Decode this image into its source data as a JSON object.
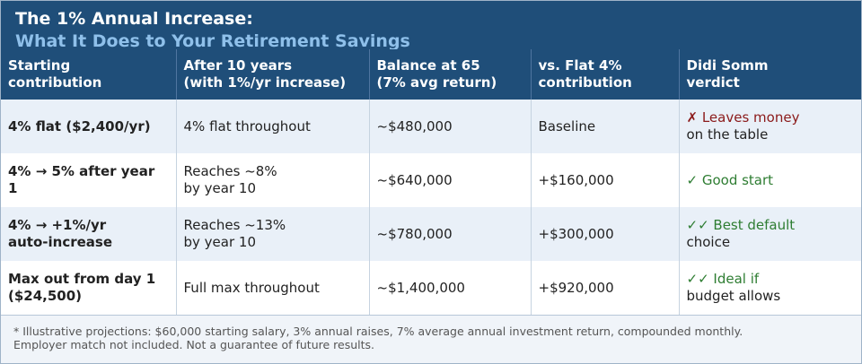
{
  "title": {
    "main": "The 1% Annual Increase:",
    "sub": "What It Does to Your Retirement Savings"
  },
  "table": {
    "headers": [
      {
        "line1": "Starting",
        "line2": "contribution"
      },
      {
        "line1": "After 10 years",
        "line2": "(with 1%/yr increase)"
      },
      {
        "line1": "Balance at 65",
        "line2": "(7% avg return)"
      },
      {
        "line1": "vs. Flat 4%",
        "line2": "contribution"
      },
      {
        "line1": "Didi Somm",
        "line2": "verdict"
      }
    ],
    "rows": [
      {
        "starting": {
          "line1": "4% flat ($2,400/yr)",
          "line2": ""
        },
        "after10": {
          "line1": "4% flat throughout",
          "line2": ""
        },
        "balance": "~$480,000",
        "vs_flat": "Baseline",
        "verdict": {
          "mark": "✗ Leaves money",
          "rest": "on the table",
          "tone": "bad"
        }
      },
      {
        "starting": {
          "line1": "4% → 5% after year",
          "line2": "1"
        },
        "after10": {
          "line1": "Reaches ~8%",
          "line2": "by year 10"
        },
        "balance": "~$640,000",
        "vs_flat": "+$160,000",
        "verdict": {
          "mark": "✓ Good start",
          "rest": "",
          "tone": "good"
        }
      },
      {
        "starting": {
          "line1": "4% → +1%/yr",
          "line2": "auto-increase"
        },
        "after10": {
          "line1": "Reaches ~13%",
          "line2": "by year 10"
        },
        "balance": "~$780,000",
        "vs_flat": "+$300,000",
        "verdict": {
          "mark": "✓✓ Best default",
          "rest": "choice",
          "tone": "good"
        }
      },
      {
        "starting": {
          "line1": "Max out from day 1",
          "line2": "($24,500)"
        },
        "after10": {
          "line1": "Full max throughout",
          "line2": ""
        },
        "balance": "~$1,400,000",
        "vs_flat": "+$920,000",
        "verdict": {
          "mark": "✓✓ Ideal if",
          "rest": "budget allows",
          "tone": "good"
        }
      }
    ]
  },
  "footnote": {
    "line1": "* Illustrative projections: $60,000 starting salary, 3% annual raises, 7% average annual investment return, compounded monthly.",
    "line2": "Employer match not included. Not a guarantee of future results."
  },
  "colors": {
    "header_bg": "#1f4e79",
    "subtitle": "#8fc0ea",
    "row_alt": "#e9f0f8",
    "bad": "#8b1a1a",
    "good": "#2e7d32"
  }
}
